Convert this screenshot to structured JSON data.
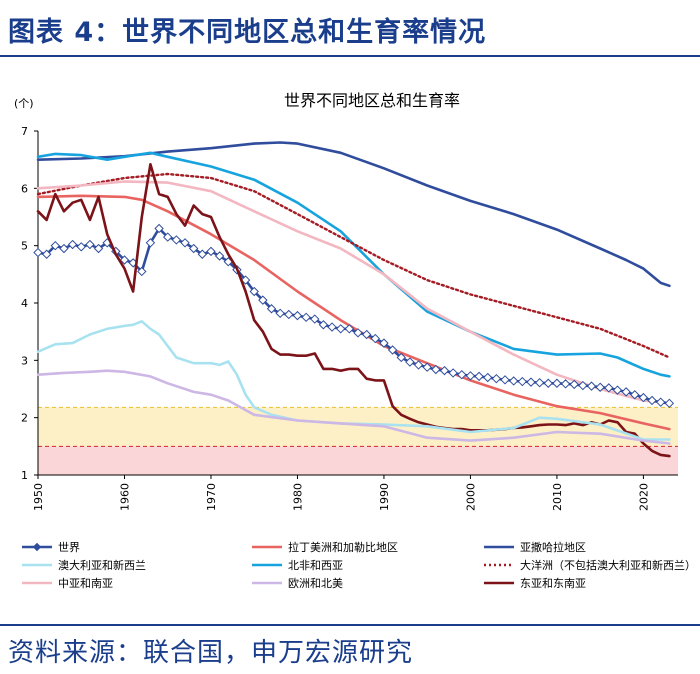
{
  "header": {
    "title": "图表 4：世界不同地区总和生育率情况"
  },
  "footer": {
    "source": "资料来源：联合国，申万宏源研究"
  },
  "chart_data": {
    "type": "line",
    "title": "世界不同地区总和生育率",
    "ylabel": "(个)",
    "ylim": [
      1,
      7
    ],
    "xlim": [
      1950,
      2024
    ],
    "xticks": [
      "1950",
      "1960",
      "1970",
      "1980",
      "1990",
      "2000",
      "2010",
      "2020"
    ],
    "yticks": [
      "1",
      "2",
      "3",
      "4",
      "5",
      "6",
      "7"
    ],
    "bands": [
      {
        "name": "yellow-band",
        "from": 1.5,
        "to": 2.18,
        "color": "#fdf0c6",
        "line_color": "#e8c030"
      },
      {
        "name": "red-band",
        "from": 1.0,
        "to": 1.5,
        "color": "#fbd6d8",
        "line_color": "#d62728"
      }
    ],
    "series": [
      {
        "name": "亚撒哈拉地区",
        "color": "#2f4d9c",
        "dash": "",
        "marker": "",
        "points": [
          [
            1950,
            6.5
          ],
          [
            1955,
            6.52
          ],
          [
            1960,
            6.56
          ],
          [
            1965,
            6.64
          ],
          [
            1970,
            6.7
          ],
          [
            1975,
            6.78
          ],
          [
            1978,
            6.8
          ],
          [
            1980,
            6.78
          ],
          [
            1985,
            6.62
          ],
          [
            1990,
            6.35
          ],
          [
            1995,
            6.05
          ],
          [
            2000,
            5.78
          ],
          [
            2005,
            5.55
          ],
          [
            2010,
            5.28
          ],
          [
            2015,
            4.95
          ],
          [
            2018,
            4.75
          ],
          [
            2020,
            4.6
          ],
          [
            2022,
            4.35
          ],
          [
            2023,
            4.3
          ]
        ]
      },
      {
        "name": "北非和西亚",
        "color": "#17a4de",
        "dash": "",
        "marker": "",
        "points": [
          [
            1950,
            6.55
          ],
          [
            1952,
            6.6
          ],
          [
            1955,
            6.58
          ],
          [
            1958,
            6.5
          ],
          [
            1960,
            6.55
          ],
          [
            1963,
            6.62
          ],
          [
            1965,
            6.55
          ],
          [
            1970,
            6.38
          ],
          [
            1975,
            6.15
          ],
          [
            1980,
            5.75
          ],
          [
            1985,
            5.25
          ],
          [
            1990,
            4.5
          ],
          [
            1995,
            3.85
          ],
          [
            2000,
            3.5
          ],
          [
            2005,
            3.2
          ],
          [
            2010,
            3.1
          ],
          [
            2015,
            3.12
          ],
          [
            2017,
            3.05
          ],
          [
            2020,
            2.85
          ],
          [
            2022,
            2.75
          ],
          [
            2023,
            2.72
          ]
        ]
      },
      {
        "name": "大洋洲（不包括澳大利亚和新西兰）",
        "color": "#a51c24",
        "dash": "2,3",
        "marker": "",
        "points": [
          [
            1950,
            5.9
          ],
          [
            1955,
            6.05
          ],
          [
            1960,
            6.18
          ],
          [
            1965,
            6.25
          ],
          [
            1970,
            6.18
          ],
          [
            1975,
            5.95
          ],
          [
            1980,
            5.55
          ],
          [
            1985,
            5.15
          ],
          [
            1990,
            4.75
          ],
          [
            1995,
            4.4
          ],
          [
            2000,
            4.15
          ],
          [
            2005,
            3.95
          ],
          [
            2010,
            3.75
          ],
          [
            2015,
            3.55
          ],
          [
            2020,
            3.25
          ],
          [
            2023,
            3.05
          ]
        ]
      },
      {
        "name": "中亚和南亚",
        "color": "#f2b7c0",
        "dash": "",
        "marker": "",
        "points": [
          [
            1950,
            6.0
          ],
          [
            1955,
            6.05
          ],
          [
            1960,
            6.12
          ],
          [
            1965,
            6.1
          ],
          [
            1970,
            5.95
          ],
          [
            1975,
            5.6
          ],
          [
            1980,
            5.25
          ],
          [
            1985,
            4.95
          ],
          [
            1990,
            4.5
          ],
          [
            1995,
            3.9
          ],
          [
            2000,
            3.5
          ],
          [
            2005,
            3.1
          ],
          [
            2010,
            2.75
          ],
          [
            2015,
            2.5
          ],
          [
            2020,
            2.3
          ],
          [
            2023,
            2.25
          ]
        ]
      },
      {
        "name": "拉丁美洲和加勒比地区",
        "color": "#e86460",
        "dash": "",
        "marker": "",
        "points": [
          [
            1950,
            5.85
          ],
          [
            1955,
            5.87
          ],
          [
            1960,
            5.85
          ],
          [
            1962,
            5.8
          ],
          [
            1965,
            5.6
          ],
          [
            1970,
            5.2
          ],
          [
            1975,
            4.75
          ],
          [
            1980,
            4.2
          ],
          [
            1985,
            3.7
          ],
          [
            1990,
            3.25
          ],
          [
            1995,
            2.95
          ],
          [
            2000,
            2.65
          ],
          [
            2005,
            2.4
          ],
          [
            2010,
            2.2
          ],
          [
            2015,
            2.08
          ],
          [
            2020,
            1.9
          ],
          [
            2023,
            1.8
          ]
        ]
      },
      {
        "name": "世界",
        "color": "#2f4d9c",
        "dash": "",
        "marker": "diamond",
        "points": [
          [
            1950,
            4.88
          ],
          [
            1951,
            4.85
          ],
          [
            1952,
            5.0
          ],
          [
            1953,
            4.95
          ],
          [
            1954,
            5.02
          ],
          [
            1955,
            4.98
          ],
          [
            1956,
            5.02
          ],
          [
            1957,
            4.95
          ],
          [
            1958,
            5.05
          ],
          [
            1959,
            4.9
          ],
          [
            1960,
            4.75
          ],
          [
            1961,
            4.7
          ],
          [
            1962,
            4.55
          ],
          [
            1963,
            5.05
          ],
          [
            1964,
            5.3
          ],
          [
            1965,
            5.15
          ],
          [
            1966,
            5.1
          ],
          [
            1967,
            5.05
          ],
          [
            1968,
            4.95
          ],
          [
            1969,
            4.85
          ],
          [
            1970,
            4.9
          ],
          [
            1971,
            4.82
          ],
          [
            1972,
            4.72
          ],
          [
            1973,
            4.58
          ],
          [
            1974,
            4.4
          ],
          [
            1975,
            4.2
          ],
          [
            1976,
            4.05
          ],
          [
            1977,
            3.9
          ],
          [
            1978,
            3.82
          ],
          [
            1979,
            3.8
          ],
          [
            1980,
            3.78
          ],
          [
            1981,
            3.75
          ],
          [
            1982,
            3.72
          ],
          [
            1983,
            3.62
          ],
          [
            1984,
            3.58
          ],
          [
            1985,
            3.55
          ],
          [
            1986,
            3.55
          ],
          [
            1987,
            3.48
          ],
          [
            1988,
            3.45
          ],
          [
            1989,
            3.38
          ],
          [
            1990,
            3.3
          ],
          [
            1991,
            3.18
          ],
          [
            1992,
            3.05
          ],
          [
            1993,
            2.97
          ],
          [
            1994,
            2.92
          ],
          [
            1995,
            2.88
          ],
          [
            1996,
            2.84
          ],
          [
            1997,
            2.82
          ],
          [
            1998,
            2.78
          ],
          [
            1999,
            2.75
          ],
          [
            2000,
            2.73
          ],
          [
            2001,
            2.72
          ],
          [
            2002,
            2.7
          ],
          [
            2003,
            2.68
          ],
          [
            2004,
            2.66
          ],
          [
            2005,
            2.64
          ],
          [
            2006,
            2.63
          ],
          [
            2007,
            2.62
          ],
          [
            2008,
            2.61
          ],
          [
            2009,
            2.6
          ],
          [
            2010,
            2.6
          ],
          [
            2011,
            2.59
          ],
          [
            2012,
            2.58
          ],
          [
            2013,
            2.56
          ],
          [
            2014,
            2.55
          ],
          [
            2015,
            2.53
          ],
          [
            2016,
            2.52
          ],
          [
            2017,
            2.48
          ],
          [
            2018,
            2.45
          ],
          [
            2019,
            2.4
          ],
          [
            2020,
            2.35
          ],
          [
            2021,
            2.3
          ],
          [
            2022,
            2.27
          ],
          [
            2023,
            2.25
          ]
        ]
      },
      {
        "name": "东亚和东南亚",
        "color": "#7b1318",
        "dash": "",
        "marker": "",
        "points": [
          [
            1950,
            5.6
          ],
          [
            1951,
            5.45
          ],
          [
            1952,
            5.9
          ],
          [
            1953,
            5.6
          ],
          [
            1954,
            5.75
          ],
          [
            1955,
            5.8
          ],
          [
            1956,
            5.45
          ],
          [
            1957,
            5.85
          ],
          [
            1958,
            5.2
          ],
          [
            1959,
            4.85
          ],
          [
            1960,
            4.6
          ],
          [
            1961,
            4.2
          ],
          [
            1962,
            5.5
          ],
          [
            1963,
            6.42
          ],
          [
            1964,
            5.9
          ],
          [
            1965,
            5.85
          ],
          [
            1966,
            5.55
          ],
          [
            1967,
            5.35
          ],
          [
            1968,
            5.7
          ],
          [
            1969,
            5.55
          ],
          [
            1970,
            5.5
          ],
          [
            1971,
            5.15
          ],
          [
            1972,
            4.85
          ],
          [
            1973,
            4.6
          ],
          [
            1974,
            4.2
          ],
          [
            1975,
            3.7
          ],
          [
            1976,
            3.5
          ],
          [
            1977,
            3.2
          ],
          [
            1978,
            3.1
          ],
          [
            1979,
            3.1
          ],
          [
            1980,
            3.08
          ],
          [
            1981,
            3.08
          ],
          [
            1982,
            3.12
          ],
          [
            1983,
            2.85
          ],
          [
            1984,
            2.85
          ],
          [
            1985,
            2.82
          ],
          [
            1986,
            2.85
          ],
          [
            1987,
            2.85
          ],
          [
            1988,
            2.68
          ],
          [
            1989,
            2.65
          ],
          [
            1990,
            2.65
          ],
          [
            1991,
            2.2
          ],
          [
            1992,
            2.05
          ],
          [
            1993,
            1.98
          ],
          [
            1994,
            1.92
          ],
          [
            1995,
            1.88
          ],
          [
            1996,
            1.84
          ],
          [
            1997,
            1.82
          ],
          [
            1998,
            1.8
          ],
          [
            1999,
            1.8
          ],
          [
            2000,
            1.78
          ],
          [
            2001,
            1.78
          ],
          [
            2002,
            1.78
          ],
          [
            2003,
            1.79
          ],
          [
            2004,
            1.8
          ],
          [
            2005,
            1.82
          ],
          [
            2006,
            1.83
          ],
          [
            2007,
            1.85
          ],
          [
            2008,
            1.87
          ],
          [
            2009,
            1.88
          ],
          [
            2010,
            1.88
          ],
          [
            2011,
            1.87
          ],
          [
            2012,
            1.9
          ],
          [
            2013,
            1.87
          ],
          [
            2014,
            1.92
          ],
          [
            2015,
            1.88
          ],
          [
            2016,
            1.95
          ],
          [
            2017,
            1.92
          ],
          [
            2018,
            1.75
          ],
          [
            2019,
            1.72
          ],
          [
            2020,
            1.55
          ],
          [
            2021,
            1.42
          ],
          [
            2022,
            1.35
          ],
          [
            2023,
            1.33
          ]
        ]
      },
      {
        "name": "澳大利亚和新西兰",
        "color": "#a8e2f0",
        "dash": "",
        "marker": "",
        "points": [
          [
            1950,
            3.15
          ],
          [
            1952,
            3.28
          ],
          [
            1954,
            3.3
          ],
          [
            1956,
            3.45
          ],
          [
            1958,
            3.55
          ],
          [
            1960,
            3.6
          ],
          [
            1961,
            3.62
          ],
          [
            1962,
            3.68
          ],
          [
            1963,
            3.55
          ],
          [
            1964,
            3.45
          ],
          [
            1965,
            3.25
          ],
          [
            1966,
            3.05
          ],
          [
            1968,
            2.95
          ],
          [
            1970,
            2.95
          ],
          [
            1971,
            2.92
          ],
          [
            1972,
            2.98
          ],
          [
            1973,
            2.75
          ],
          [
            1974,
            2.4
          ],
          [
            1975,
            2.18
          ],
          [
            1977,
            2.05
          ],
          [
            1980,
            1.95
          ],
          [
            1985,
            1.9
          ],
          [
            1990,
            1.88
          ],
          [
            1995,
            1.85
          ],
          [
            2000,
            1.75
          ],
          [
            2005,
            1.82
          ],
          [
            2008,
            2.0
          ],
          [
            2010,
            1.98
          ],
          [
            2015,
            1.88
          ],
          [
            2020,
            1.62
          ],
          [
            2023,
            1.62
          ]
        ]
      },
      {
        "name": "欧洲和北美",
        "color": "#cdb7e5",
        "dash": "",
        "marker": "",
        "points": [
          [
            1950,
            2.75
          ],
          [
            1953,
            2.78
          ],
          [
            1956,
            2.8
          ],
          [
            1958,
            2.82
          ],
          [
            1960,
            2.8
          ],
          [
            1963,
            2.72
          ],
          [
            1965,
            2.6
          ],
          [
            1968,
            2.45
          ],
          [
            1970,
            2.4
          ],
          [
            1972,
            2.3
          ],
          [
            1975,
            2.05
          ],
          [
            1980,
            1.95
          ],
          [
            1985,
            1.9
          ],
          [
            1990,
            1.85
          ],
          [
            1995,
            1.65
          ],
          [
            2000,
            1.6
          ],
          [
            2005,
            1.65
          ],
          [
            2010,
            1.75
          ],
          [
            2015,
            1.72
          ],
          [
            2020,
            1.6
          ],
          [
            2023,
            1.55
          ]
        ]
      }
    ],
    "legend": {
      "position": "bottom",
      "entries": [
        "世界",
        "拉丁美洲和加勒比地区",
        "亚撒哈拉地区",
        "澳大利亚和新西兰",
        "北非和西亚",
        "大洋洲（不包括澳大利亚和新西兰）",
        "中亚和南亚",
        "欧洲和北美",
        "东亚和东南亚"
      ]
    }
  }
}
